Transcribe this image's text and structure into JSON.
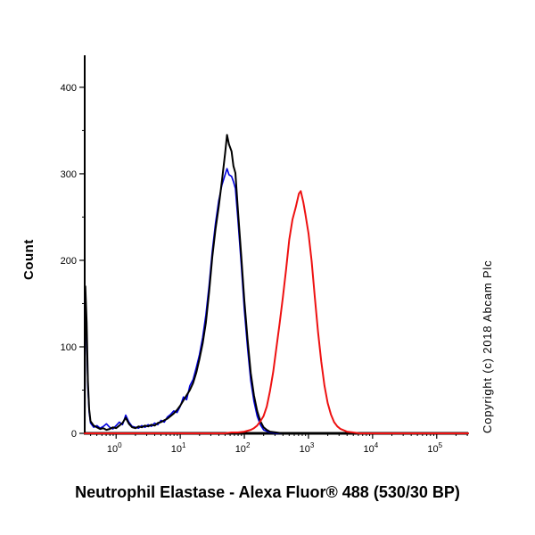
{
  "copyright": "Copyright (c) 2018 Abcam Plc",
  "chart_data": {
    "type": "line",
    "chart_kind": "flow-cytometry-histogram",
    "title": "Neutrophil Elastase - Alexa Fluor® 488 (530/30 BP)",
    "xlabel": "",
    "ylabel": "Count",
    "x_scale": "log10",
    "xlim_log": [
      -0.49,
      5.49
    ],
    "ylim": [
      0,
      437
    ],
    "y_ticks": [
      0,
      100,
      200,
      300,
      400
    ],
    "x_tick_base": "10",
    "x_tick_exponents": [
      0,
      1,
      2,
      3,
      4,
      5
    ],
    "grid": false,
    "legend": "none",
    "axis_color": "#000000",
    "background_color": "#ffffff",
    "series": [
      {
        "name": "blue-control",
        "color": "#0000dd",
        "width": 1.6,
        "points": [
          [
            -0.49,
            0
          ],
          [
            -0.48,
            160
          ],
          [
            -0.46,
            115
          ],
          [
            -0.44,
            52
          ],
          [
            -0.42,
            24
          ],
          [
            -0.4,
            12
          ],
          [
            -0.35,
            7
          ],
          [
            -0.3,
            9
          ],
          [
            -0.25,
            6
          ],
          [
            -0.2,
            8
          ],
          [
            -0.15,
            11
          ],
          [
            -0.1,
            7
          ],
          [
            -0.05,
            5
          ],
          [
            0.0,
            9
          ],
          [
            0.05,
            13
          ],
          [
            0.1,
            10
          ],
          [
            0.15,
            21
          ],
          [
            0.2,
            13
          ],
          [
            0.25,
            8
          ],
          [
            0.3,
            7
          ],
          [
            0.35,
            6
          ],
          [
            0.4,
            9
          ],
          [
            0.45,
            7
          ],
          [
            0.5,
            10
          ],
          [
            0.55,
            8
          ],
          [
            0.6,
            12
          ],
          [
            0.65,
            10
          ],
          [
            0.7,
            15
          ],
          [
            0.75,
            13
          ],
          [
            0.8,
            19
          ],
          [
            0.85,
            22
          ],
          [
            0.9,
            26
          ],
          [
            0.95,
            24
          ],
          [
            1.0,
            31
          ],
          [
            1.05,
            42
          ],
          [
            1.1,
            39
          ],
          [
            1.15,
            55
          ],
          [
            1.2,
            62
          ],
          [
            1.25,
            76
          ],
          [
            1.3,
            91
          ],
          [
            1.35,
            111
          ],
          [
            1.4,
            137
          ],
          [
            1.45,
            171
          ],
          [
            1.5,
            211
          ],
          [
            1.55,
            243
          ],
          [
            1.6,
            269
          ],
          [
            1.65,
            287
          ],
          [
            1.7,
            299
          ],
          [
            1.73,
            306
          ],
          [
            1.76,
            299
          ],
          [
            1.8,
            297
          ],
          [
            1.83,
            291
          ],
          [
            1.86,
            283
          ],
          [
            1.9,
            246
          ],
          [
            1.95,
            196
          ],
          [
            2.0,
            143
          ],
          [
            2.05,
            99
          ],
          [
            2.1,
            61
          ],
          [
            2.15,
            37
          ],
          [
            2.2,
            20
          ],
          [
            2.25,
            10
          ],
          [
            2.3,
            4
          ],
          [
            2.4,
            1
          ],
          [
            2.5,
            0
          ],
          [
            5.49,
            0
          ]
        ]
      },
      {
        "name": "black-control",
        "color": "#000000",
        "width": 2,
        "points": [
          [
            -0.49,
            0
          ],
          [
            -0.48,
            170
          ],
          [
            -0.46,
            128
          ],
          [
            -0.44,
            60
          ],
          [
            -0.42,
            28
          ],
          [
            -0.4,
            14
          ],
          [
            -0.35,
            9
          ],
          [
            -0.3,
            7
          ],
          [
            -0.25,
            5
          ],
          [
            -0.2,
            6
          ],
          [
            -0.15,
            4
          ],
          [
            -0.1,
            5
          ],
          [
            -0.05,
            7
          ],
          [
            0.0,
            6
          ],
          [
            0.05,
            9
          ],
          [
            0.1,
            12
          ],
          [
            0.15,
            18
          ],
          [
            0.2,
            11
          ],
          [
            0.25,
            7
          ],
          [
            0.3,
            6
          ],
          [
            0.35,
            8
          ],
          [
            0.4,
            7
          ],
          [
            0.45,
            9
          ],
          [
            0.5,
            8
          ],
          [
            0.55,
            10
          ],
          [
            0.6,
            9
          ],
          [
            0.65,
            12
          ],
          [
            0.7,
            13
          ],
          [
            0.75,
            15
          ],
          [
            0.8,
            17
          ],
          [
            0.85,
            20
          ],
          [
            0.9,
            23
          ],
          [
            0.95,
            27
          ],
          [
            1.0,
            32
          ],
          [
            1.05,
            38
          ],
          [
            1.1,
            44
          ],
          [
            1.15,
            50
          ],
          [
            1.2,
            58
          ],
          [
            1.25,
            70
          ],
          [
            1.3,
            86
          ],
          [
            1.35,
            104
          ],
          [
            1.4,
            128
          ],
          [
            1.45,
            163
          ],
          [
            1.5,
            204
          ],
          [
            1.55,
            236
          ],
          [
            1.6,
            262
          ],
          [
            1.65,
            292
          ],
          [
            1.7,
            324
          ],
          [
            1.73,
            345
          ],
          [
            1.76,
            334
          ],
          [
            1.8,
            326
          ],
          [
            1.83,
            309
          ],
          [
            1.86,
            301
          ],
          [
            1.9,
            257
          ],
          [
            1.95,
            206
          ],
          [
            2.0,
            154
          ],
          [
            2.05,
            109
          ],
          [
            2.1,
            70
          ],
          [
            2.15,
            44
          ],
          [
            2.2,
            26
          ],
          [
            2.25,
            14
          ],
          [
            2.3,
            7
          ],
          [
            2.35,
            4
          ],
          [
            2.4,
            2
          ],
          [
            2.5,
            1
          ],
          [
            2.6,
            0
          ],
          [
            5.49,
            0
          ]
        ]
      },
      {
        "name": "red-stained",
        "color": "#ee1111",
        "width": 2,
        "points": [
          [
            -0.49,
            0
          ],
          [
            1.7,
            0
          ],
          [
            1.8,
            1
          ],
          [
            1.9,
            1
          ],
          [
            2.0,
            2
          ],
          [
            2.1,
            4
          ],
          [
            2.15,
            6
          ],
          [
            2.2,
            9
          ],
          [
            2.25,
            14
          ],
          [
            2.3,
            20
          ],
          [
            2.35,
            31
          ],
          [
            2.4,
            49
          ],
          [
            2.45,
            71
          ],
          [
            2.5,
            99
          ],
          [
            2.55,
            127
          ],
          [
            2.6,
            157
          ],
          [
            2.65,
            189
          ],
          [
            2.7,
            224
          ],
          [
            2.75,
            247
          ],
          [
            2.8,
            261
          ],
          [
            2.85,
            277
          ],
          [
            2.88,
            280
          ],
          [
            2.92,
            267
          ],
          [
            2.95,
            254
          ],
          [
            3.0,
            231
          ],
          [
            3.05,
            199
          ],
          [
            3.1,
            157
          ],
          [
            3.15,
            117
          ],
          [
            3.2,
            83
          ],
          [
            3.25,
            55
          ],
          [
            3.3,
            35
          ],
          [
            3.35,
            22
          ],
          [
            3.4,
            13
          ],
          [
            3.45,
            8
          ],
          [
            3.5,
            5
          ],
          [
            3.6,
            2
          ],
          [
            3.7,
            1
          ],
          [
            3.8,
            0
          ],
          [
            5.49,
            0
          ]
        ]
      }
    ]
  }
}
